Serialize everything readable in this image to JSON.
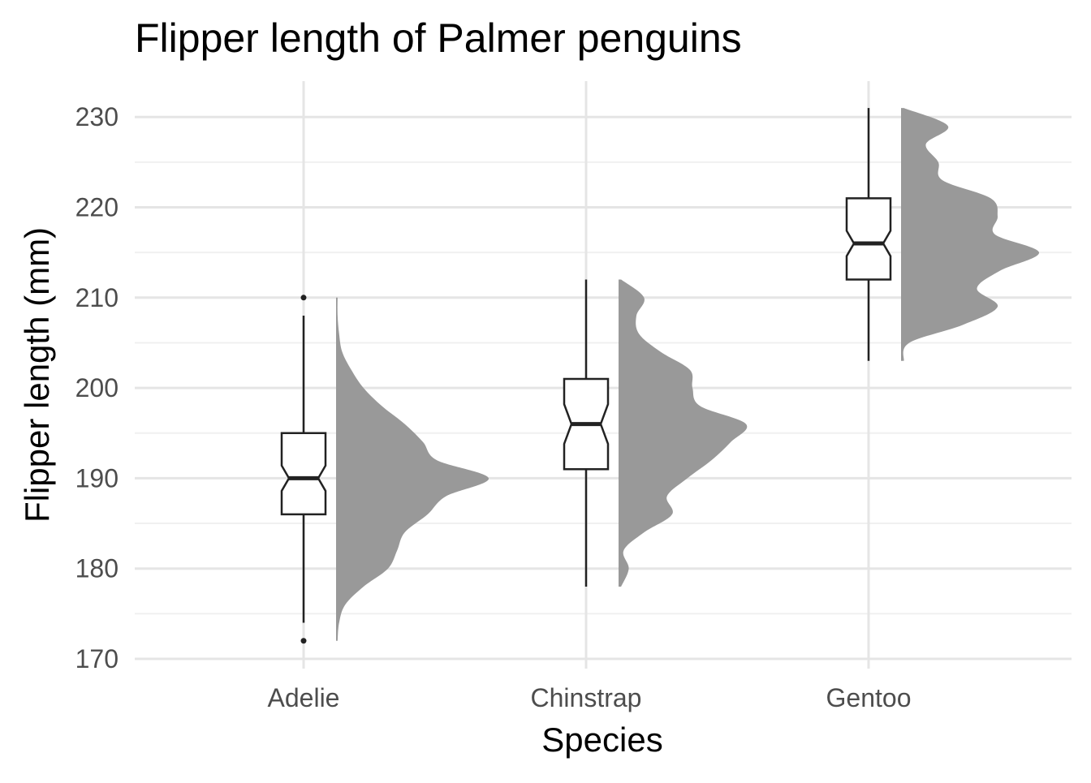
{
  "chart_data": {
    "type": "box-and-half-violin",
    "title": "Flipper length of Palmer penguins",
    "xlabel": "Species",
    "ylabel": "Flipper length (mm)",
    "categories": [
      "Adelie",
      "Chinstrap",
      "Gentoo"
    ],
    "ylim": [
      169,
      234
    ],
    "yticks": [
      170,
      180,
      190,
      200,
      210,
      220,
      230
    ],
    "grid": true,
    "legend": "none",
    "colors": {
      "violin_fill": "#999999",
      "box_stroke": "#222222",
      "grid_major": "#e5e5e5",
      "grid_minor": "#f0f0f0",
      "text": "#000000",
      "tick_text": "#4d4d4d"
    },
    "boxes": [
      {
        "species": "Adelie",
        "whisker_low": 174,
        "q1": 186,
        "median": 190,
        "q3": 195,
        "whisker_high": 208,
        "notch_low": 188.6,
        "notch_high": 191.4,
        "outliers": [
          172,
          210
        ]
      },
      {
        "species": "Chinstrap",
        "whisker_low": 178,
        "q1": 191,
        "median": 196,
        "q3": 201,
        "whisker_high": 212,
        "notch_low": 193.8,
        "notch_high": 198.2,
        "outliers": []
      },
      {
        "species": "Gentoo",
        "whisker_low": 203,
        "q1": 212,
        "median": 216,
        "q3": 221,
        "whisker_high": 231,
        "notch_low": 214.6,
        "notch_high": 217.4,
        "outliers": []
      }
    ],
    "densities": [
      {
        "species": "Adelie",
        "y": [
          172,
          174,
          176,
          178,
          180,
          182,
          184,
          186,
          188,
          190,
          192,
          194,
          196,
          198,
          200,
          202,
          204,
          206,
          208,
          210
        ],
        "density": [
          0.01,
          0.02,
          0.06,
          0.18,
          0.34,
          0.4,
          0.45,
          0.6,
          0.72,
          1.0,
          0.66,
          0.57,
          0.45,
          0.3,
          0.18,
          0.1,
          0.04,
          0.02,
          0.01,
          0.01
        ]
      },
      {
        "species": "Chinstrap",
        "y": [
          178,
          180,
          182,
          184,
          186,
          188,
          190,
          192,
          194,
          196,
          198,
          200,
          202,
          204,
          206,
          208,
          210,
          212
        ],
        "density": [
          0.02,
          0.08,
          0.04,
          0.2,
          0.42,
          0.38,
          0.54,
          0.73,
          0.88,
          1.0,
          0.64,
          0.58,
          0.56,
          0.33,
          0.16,
          0.14,
          0.2,
          0.02
        ]
      },
      {
        "species": "Gentoo",
        "y": [
          203,
          205,
          207,
          209,
          211,
          213,
          215,
          217,
          219,
          221,
          223,
          225,
          227,
          229,
          231
        ],
        "density": [
          0.02,
          0.06,
          0.45,
          0.7,
          0.55,
          0.72,
          1.0,
          0.68,
          0.7,
          0.65,
          0.3,
          0.27,
          0.18,
          0.34,
          0.02
        ]
      }
    ]
  }
}
